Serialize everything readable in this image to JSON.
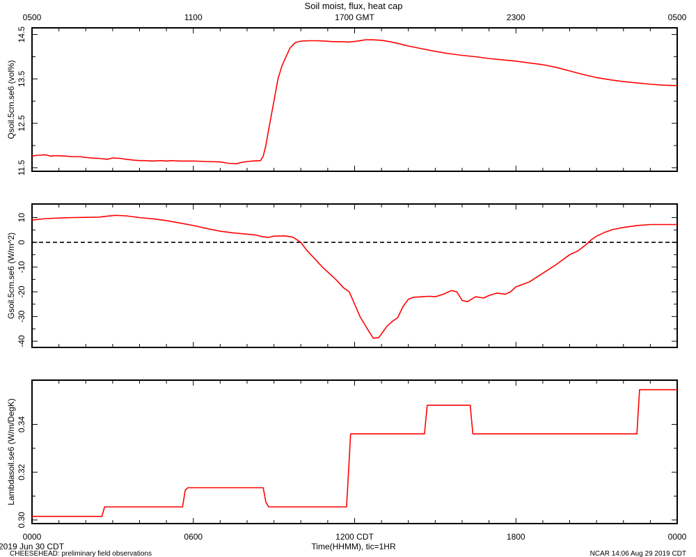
{
  "title": "Soil moist, flux, heat cap",
  "top_axis": {
    "ticks": [
      {
        "hour": 0,
        "label": "0500"
      },
      {
        "hour": 6,
        "label": "1100"
      },
      {
        "hour": 12,
        "label": "1700 GMT"
      },
      {
        "hour": 18,
        "label": "2300"
      },
      {
        "hour": 24,
        "label": "0500"
      }
    ]
  },
  "bottom_axis": {
    "ticks": [
      {
        "hour": 0,
        "label": "0000"
      },
      {
        "hour": 6,
        "label": "0600"
      },
      {
        "hour": 12,
        "label": "1200 CDT"
      },
      {
        "hour": 18,
        "label": "1800"
      },
      {
        "hour": 24,
        "label": "0000"
      }
    ],
    "xlabel": "Time(HHMM), tic=1HR"
  },
  "footer": {
    "date": "2019 Jun 30 CDT",
    "source": "CHEESEHEAD: preliminary field observations",
    "stamp": "NCAR 14:06 Aug 29 2019 CDT"
  },
  "colors": {
    "series": "#ff0000",
    "frame": "#000000",
    "zero_line": "#000000"
  },
  "chart_data": [
    {
      "type": "line",
      "ylabel": "Qsoil.5cm.se6 (vol%)",
      "ylim": [
        11.42,
        14.65
      ],
      "yticks": [
        11.5,
        12.5,
        13.5,
        14.5
      ],
      "ytick_labels": [
        "11.5",
        "12.5",
        "13.5",
        "14.5"
      ],
      "x_unit": "hours since 0000 CDT",
      "x": [
        0,
        0.2,
        0.5,
        0.7,
        0.8,
        1.0,
        1.3,
        1.5,
        1.8,
        2.0,
        2.2,
        2.5,
        2.8,
        3.0,
        3.3,
        3.5,
        3.8,
        4.0,
        4.2,
        4.5,
        4.8,
        5.0,
        5.2,
        5.5,
        5.8,
        6.0,
        6.5,
        7.0,
        7.3,
        7.6,
        7.8,
        8.0,
        8.2,
        8.5,
        8.6,
        8.7,
        8.8,
        9.0,
        9.15,
        9.3,
        9.45,
        9.6,
        9.8,
        10.0,
        10.3,
        10.6,
        10.9,
        11.2,
        11.5,
        11.8,
        12.1,
        12.4,
        12.7,
        13.0,
        13.3,
        13.6,
        14.0,
        14.5,
        15.0,
        15.5,
        16.0,
        16.5,
        17.0,
        17.5,
        18.0,
        18.5,
        19.0,
        19.5,
        20.0,
        20.5,
        21.0,
        21.5,
        22.0,
        22.5,
        23.0,
        23.5,
        24.0
      ],
      "values": [
        11.76,
        11.78,
        11.79,
        11.76,
        11.77,
        11.77,
        11.76,
        11.75,
        11.75,
        11.73,
        11.72,
        11.71,
        11.69,
        11.72,
        11.71,
        11.69,
        11.67,
        11.66,
        11.66,
        11.65,
        11.66,
        11.65,
        11.66,
        11.65,
        11.65,
        11.65,
        11.64,
        11.63,
        11.6,
        11.59,
        11.62,
        11.64,
        11.65,
        11.66,
        11.76,
        12.0,
        12.35,
        13.0,
        13.5,
        13.8,
        14.0,
        14.2,
        14.32,
        14.35,
        14.36,
        14.36,
        14.35,
        14.34,
        14.34,
        14.33,
        14.35,
        14.38,
        14.38,
        14.37,
        14.34,
        14.3,
        14.24,
        14.18,
        14.12,
        14.07,
        14.03,
        14.0,
        13.96,
        13.93,
        13.9,
        13.86,
        13.82,
        13.76,
        13.68,
        13.6,
        13.53,
        13.48,
        13.44,
        13.41,
        13.38,
        13.36,
        13.35
      ]
    },
    {
      "type": "line",
      "ylabel": "Gsoil.5cm.se6 (W/m^2)",
      "ylim": [
        -42.5,
        15.5
      ],
      "yticks": [
        -40,
        -30,
        -20,
        -10,
        0,
        10
      ],
      "ytick_labels": [
        "-40",
        "-30",
        "-20",
        "-10",
        "0",
        "10"
      ],
      "reference_line": {
        "y": 0,
        "style": "dashed"
      },
      "x_unit": "hours since 0000 CDT",
      "x": [
        0,
        0.5,
        1.0,
        1.5,
        2.0,
        2.5,
        2.8,
        3.1,
        3.5,
        4.0,
        4.5,
        5.0,
        5.5,
        6.0,
        6.5,
        7.0,
        7.5,
        8.0,
        8.3,
        8.6,
        8.8,
        9.0,
        9.4,
        9.7,
        10.0,
        10.2,
        10.5,
        10.8,
        11.0,
        11.3,
        11.6,
        11.8,
        12.0,
        12.2,
        12.5,
        12.7,
        12.9,
        13.0,
        13.2,
        13.4,
        13.6,
        13.8,
        14.0,
        14.2,
        14.5,
        14.8,
        15.0,
        15.3,
        15.6,
        15.8,
        16.0,
        16.2,
        16.5,
        16.8,
        17.0,
        17.3,
        17.6,
        17.8,
        18.0,
        18.5,
        19.0,
        19.5,
        20.0,
        20.3,
        20.6,
        20.8,
        21.0,
        21.3,
        21.6,
        22.0,
        22.5,
        23.0,
        23.5,
        24.0
      ],
      "values": [
        9.0,
        9.6,
        9.8,
        10.0,
        10.1,
        10.2,
        10.6,
        10.9,
        10.7,
        10.0,
        9.5,
        8.8,
        7.8,
        6.8,
        5.6,
        4.5,
        3.8,
        3.3,
        3.0,
        2.2,
        2.0,
        2.5,
        2.6,
        2.1,
        0.0,
        -3.0,
        -6.5,
        -10.0,
        -12.0,
        -15.0,
        -18.5,
        -20.0,
        -25.0,
        -30.0,
        -35.5,
        -38.8,
        -38.5,
        -37.0,
        -34.0,
        -32.0,
        -30.5,
        -26.0,
        -23.0,
        -22.2,
        -22.0,
        -21.8,
        -22.0,
        -21.0,
        -19.5,
        -20.0,
        -23.5,
        -24.0,
        -22.0,
        -22.5,
        -21.5,
        -20.5,
        -21.0,
        -20.0,
        -18.0,
        -16.0,
        -12.5,
        -9.0,
        -5.0,
        -3.5,
        -1.0,
        1.0,
        2.5,
        4.0,
        5.2,
        6.0,
        6.8,
        7.2,
        7.2,
        7.2
      ]
    },
    {
      "type": "line",
      "step": true,
      "ylabel": "Lambdasoil.se6 (W/m/DegK)",
      "ylim": [
        0.2985,
        0.3585
      ],
      "yticks": [
        0.3,
        0.32,
        0.34
      ],
      "ytick_labels": [
        "0.30",
        "0.32",
        "0.34"
      ],
      "x_unit": "hours since 0000 CDT",
      "x": [
        0,
        2.6,
        2.7,
        5.6,
        5.7,
        5.8,
        8.6,
        8.7,
        8.8,
        11.7,
        11.8,
        11.85,
        14.6,
        14.7,
        16.3,
        16.4,
        22.5,
        22.6,
        24.0
      ],
      "values": [
        0.3015,
        0.3015,
        0.3055,
        0.3055,
        0.3125,
        0.3135,
        0.3135,
        0.3075,
        0.3055,
        0.3055,
        0.3255,
        0.336,
        0.336,
        0.348,
        0.348,
        0.336,
        0.336,
        0.3545,
        0.3545
      ]
    }
  ]
}
